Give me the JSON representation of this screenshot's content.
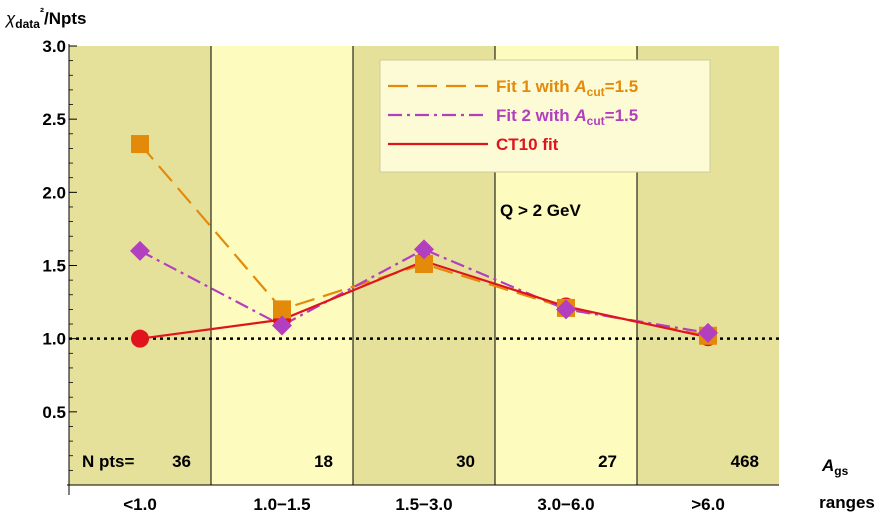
{
  "chart_data": {
    "type": "line",
    "ylabel": "χdata²/Npts",
    "xlabel_main": "Ags",
    "xlabel_sub": "ranges",
    "ylim": [
      0.0,
      3.0
    ],
    "yticks": [
      "0.5",
      "1.0",
      "1.5",
      "2.0",
      "2.5",
      "3.0"
    ],
    "ytick_values": [
      0.5,
      1.0,
      1.5,
      2.0,
      2.5,
      3.0
    ],
    "categories": [
      "<1.0",
      "1.0−1.5",
      "1.5−3.0",
      "3.0−6.0",
      ">6.0"
    ],
    "npts_prefix": "N pts=",
    "npts": [
      "36",
      "18",
      "30",
      "27",
      "468"
    ],
    "annotation": "Q > 2 GeV",
    "reference_line": 1.0,
    "band_colors": [
      "#e6e19a",
      "#fdfbbd"
    ],
    "series": [
      {
        "name": "Fit 1 with Acut=1.5",
        "legend": {
          "prefix": "Fit 1 with ",
          "var": "A",
          "sub": "cut",
          "suffix": "=1.5"
        },
        "color": "#e38a0b",
        "marker": "square",
        "dash": "long",
        "values": [
          2.33,
          1.2,
          1.51,
          1.21,
          1.02
        ]
      },
      {
        "name": "Fit 2 with Acut=1.5",
        "legend": {
          "prefix": "Fit 2 with ",
          "var": "A",
          "sub": "cut",
          "suffix": "=1.5"
        },
        "color": "#b23fbf",
        "marker": "diamond",
        "dash": "dashdot",
        "values": [
          1.6,
          1.09,
          1.61,
          1.2,
          1.04
        ]
      },
      {
        "name": "CT10 fit",
        "legend": {
          "prefix": "CT10 fit",
          "var": "",
          "sub": "",
          "suffix": ""
        },
        "color": "#e0141c",
        "marker": "circle",
        "dash": "solid",
        "values": [
          1.0,
          1.13,
          1.53,
          1.22,
          1.01
        ]
      }
    ]
  }
}
